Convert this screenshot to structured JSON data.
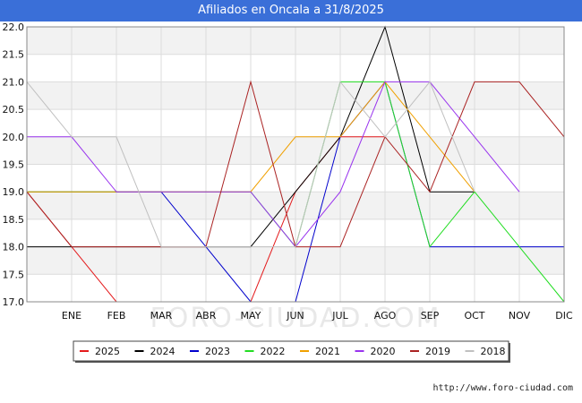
{
  "title": "Afiliados en Oncala a 31/8/2025",
  "footer_url": "http://www.foro-ciudad.com",
  "watermark": "FORO-CIUDAD.COM",
  "chart_data": {
    "type": "line",
    "title": "Afiliados en Oncala a 31/8/2025",
    "xlabel": "",
    "ylabel": "",
    "categories": [
      "",
      "ENE",
      "FEB",
      "MAR",
      "ABR",
      "MAY",
      "JUN",
      "JUL",
      "AGO",
      "SEP",
      "OCT",
      "NOV",
      "DIC"
    ],
    "ylim": [
      17,
      22
    ],
    "yticks": [
      17.0,
      17.5,
      18.0,
      18.5,
      19.0,
      19.5,
      20.0,
      20.5,
      21.0,
      21.5,
      22.0
    ],
    "ytick_labels": [
      "17.0",
      "17.5",
      "18.0",
      "18.5",
      "19.0",
      "19.5",
      "20.0",
      "20.5",
      "21.0",
      "21.5",
      "22.0"
    ],
    "legend_position": "bottom",
    "series": [
      {
        "name": "2025",
        "color": "#e41a1c",
        "values": [
          19,
          18,
          17,
          17,
          17,
          17,
          19,
          20,
          20,
          null,
          null,
          null,
          null
        ]
      },
      {
        "name": "2024",
        "color": "#000000",
        "values": [
          18,
          18,
          18,
          18,
          18,
          18,
          19,
          20,
          22,
          19,
          19,
          null,
          null
        ]
      },
      {
        "name": "2023",
        "color": "#0000cc",
        "values": [
          19,
          19,
          19,
          19,
          18,
          17,
          17,
          20,
          21,
          18,
          18,
          18,
          18
        ]
      },
      {
        "name": "2022",
        "color": "#22dd22",
        "values": [
          19,
          19,
          19,
          19,
          19,
          19,
          18,
          21,
          21,
          18,
          19,
          18,
          17
        ]
      },
      {
        "name": "2021",
        "color": "#f0a000",
        "values": [
          19,
          19,
          19,
          19,
          19,
          19,
          20,
          20,
          21,
          20,
          19,
          null,
          null
        ]
      },
      {
        "name": "2020",
        "color": "#9933ee",
        "values": [
          20,
          20,
          19,
          19,
          19,
          19,
          18,
          19,
          21,
          21,
          20,
          19,
          null
        ]
      },
      {
        "name": "2019",
        "color": "#aa2222",
        "values": [
          19,
          18,
          18,
          18,
          18,
          21,
          18,
          18,
          20,
          19,
          21,
          21,
          20
        ]
      },
      {
        "name": "2018",
        "color": "#c0c0c0",
        "values": [
          21,
          20,
          20,
          18,
          18,
          18,
          18,
          21,
          20,
          21,
          19,
          null,
          null
        ]
      }
    ]
  }
}
